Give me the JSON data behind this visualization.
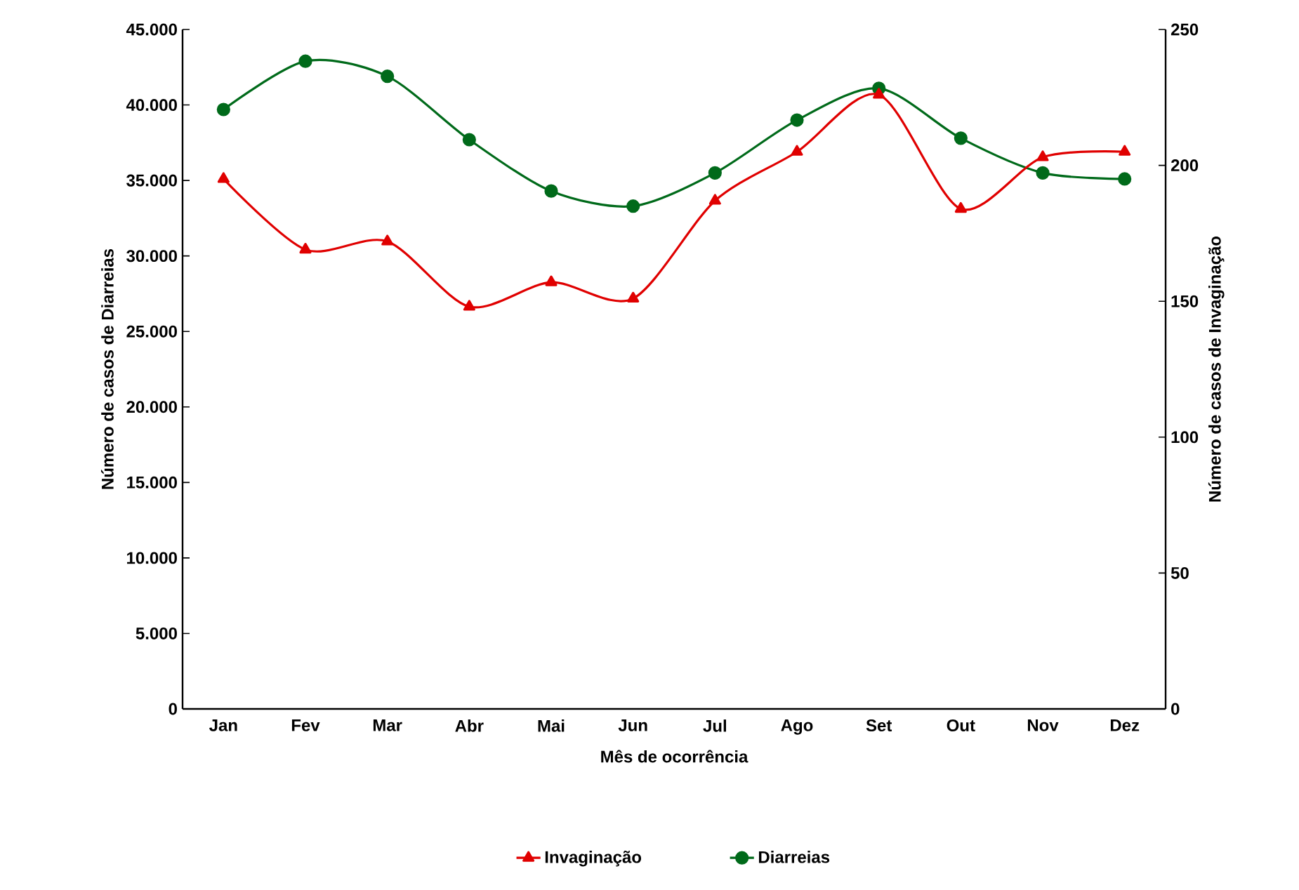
{
  "chart_data": {
    "type": "line",
    "xlabel": "Mês de ocorrência",
    "ylabel": "Número de casos de Diarreias",
    "y2label": "Número de casos de Invaginação",
    "categories": [
      "Jan",
      "Fev",
      "Mar",
      "Abr",
      "Mai",
      "Jun",
      "Jul",
      "Ago",
      "Set",
      "Out",
      "Nov",
      "Dez"
    ],
    "series": [
      {
        "name": "Invaginação",
        "color": "#e00000",
        "axis": "y2",
        "marker": "triangle",
        "values": [
          195,
          169,
          172,
          148,
          157,
          151,
          187,
          205,
          226,
          184,
          203,
          205
        ]
      },
      {
        "name": "Diarreias",
        "color": "#006a1a",
        "marker": "circle",
        "values": [
          39700,
          42900,
          41900,
          37700,
          34300,
          33300,
          35500,
          39000,
          41100,
          37800,
          35500,
          35100
        ]
      }
    ],
    "ylim": [
      0,
      45000
    ],
    "yticks": [
      {
        "value": 0,
        "label": "0"
      },
      {
        "value": 5000,
        "label": "5.000"
      },
      {
        "value": 10000,
        "label": "10.000"
      },
      {
        "value": 15000,
        "label": "15.000"
      },
      {
        "value": 20000,
        "label": "20.000"
      },
      {
        "value": 25000,
        "label": "25.000"
      },
      {
        "value": 30000,
        "label": "30.000"
      },
      {
        "value": 35000,
        "label": "35.000"
      },
      {
        "value": 40000,
        "label": "40.000"
      },
      {
        "value": 45000,
        "label": "45.000"
      }
    ],
    "y2lim": [
      0,
      250
    ],
    "y2ticks": [
      0,
      50,
      100,
      150,
      200,
      250
    ],
    "legend": "bottom",
    "line_style": "solid",
    "grid": false
  }
}
